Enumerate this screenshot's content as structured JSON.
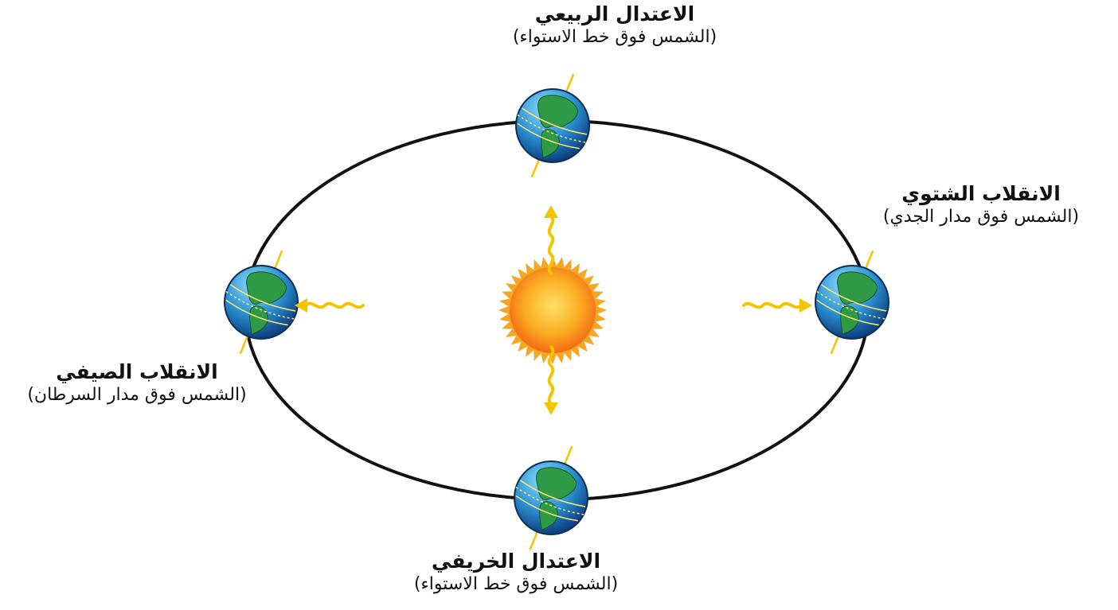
{
  "labels": {
    "spring": {
      "title": "الاعتدال الربيعي",
      "subtitle": "(الشمس فوق خط الاستواء)"
    },
    "winter": {
      "title": "الانقلاب الشتوي",
      "subtitle": "(الشمس فوق مدار الجدي)"
    },
    "summer": {
      "title": "الانقلاب الصيفي",
      "subtitle": "(الشمس فوق مدار السرطان)"
    },
    "autumn": {
      "title": "الاعتدال الخريفي",
      "subtitle": "(الشمس فوق خط الاستواء)"
    }
  },
  "colors": {
    "orbit": "#111111",
    "ocean": "#2a8fd0",
    "land": "#2e9a45",
    "sunlight": "#f5c400",
    "sun_core": "#ffd94d",
    "sun_edge": "#f26a14"
  },
  "icons": {
    "sun": "sun-icon",
    "earth": "earth-globe-icon",
    "ray": "sunlight-ray-arrow-icon"
  }
}
